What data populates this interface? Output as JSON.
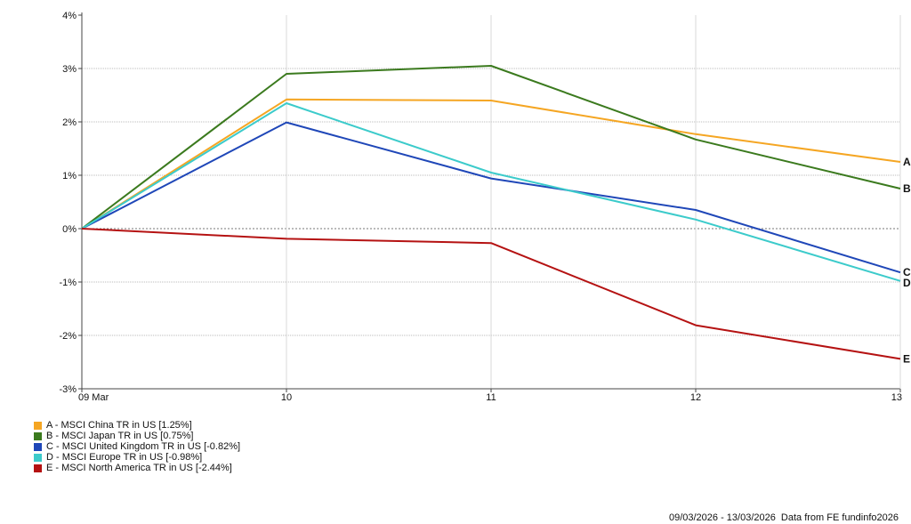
{
  "chart_data": {
    "type": "line",
    "x": [
      "09 Mar",
      "10",
      "11",
      "12",
      "13"
    ],
    "yticks": [
      "4%",
      "3%",
      "2%",
      "1%",
      "0%",
      "-1%",
      "-2%",
      "-3%"
    ],
    "ylim": [
      -3,
      4
    ],
    "grid": true,
    "legend_position": "bottom-left",
    "series": [
      {
        "name": "A - MSCI China TR in US [1.25%]",
        "label": "A",
        "color": "#f5a623",
        "values": [
          0,
          2.42,
          2.4,
          1.77,
          1.25
        ]
      },
      {
        "name": "B - MSCI Japan TR in US [0.75%]",
        "label": "B",
        "color": "#3b7a1e",
        "values": [
          0,
          2.9,
          3.05,
          1.67,
          0.75
        ]
      },
      {
        "name": "C - MSCI United Kingdom TR in US [-0.82%]",
        "label": "C",
        "color": "#1f47b8",
        "values": [
          0,
          1.99,
          0.94,
          0.35,
          -0.82
        ]
      },
      {
        "name": "D - MSCI Europe TR in US [-0.98%]",
        "label": "D",
        "color": "#3ccbcb",
        "values": [
          0,
          2.35,
          1.05,
          0.17,
          -0.98
        ]
      },
      {
        "name": "E - MSCI North America TR in US [-2.44%]",
        "label": "E",
        "color": "#b51212",
        "values": [
          0,
          -0.19,
          -0.27,
          -1.81,
          -2.44
        ]
      }
    ]
  },
  "footer": {
    "date_range": "09/03/2026 - 13/03/2026",
    "source": "Data from FE fundinfo2026"
  }
}
